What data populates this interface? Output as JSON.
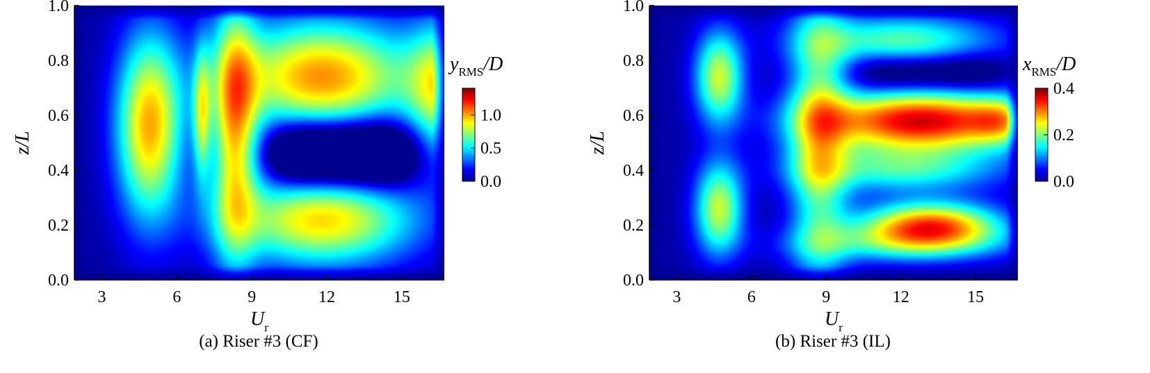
{
  "colors": {
    "jet_stops": [
      "#00008f",
      "#0000ff",
      "#0080ff",
      "#00ffff",
      "#80ff80",
      "#ffff00",
      "#ff8000",
      "#ff0000",
      "#800000"
    ],
    "axis": "#000000"
  },
  "chart_data": [
    {
      "type": "heatmap",
      "xlabel": "U",
      "xlabel_sub": "r",
      "ylabel": "z/L",
      "x_ticks": [
        3,
        6,
        9,
        12,
        15
      ],
      "x_tick_labels": [
        "3",
        "6",
        "9",
        "12",
        "15"
      ],
      "y_ticks": [
        0.0,
        0.2,
        0.4,
        0.6,
        0.8,
        1.0
      ],
      "y_tick_labels": [
        "0.0",
        "0.2",
        "0.4",
        "0.6",
        "0.8",
        "1.0"
      ],
      "xlim": [
        1.9,
        16.7
      ],
      "ylim": [
        0,
        1
      ],
      "colorbar": {
        "label_main": "y",
        "label_sub": "RMS",
        "label_tail": "/D",
        "range": [
          0,
          1.4
        ],
        "ticks": [
          0.0,
          0.5,
          1.0
        ],
        "tick_labels": [
          "0.0",
          "0.5",
          "1.0"
        ]
      },
      "caption": "(a) Riser #3 (CF)",
      "blobs": [
        {
          "x": 4.9,
          "y": 0.56,
          "sx": 0.95,
          "sy": 0.24,
          "v": 0.95
        },
        {
          "x": 7.0,
          "y": 0.6,
          "sx": 0.25,
          "sy": 0.17,
          "v": 0.55
        },
        {
          "x": 8.3,
          "y": 0.55,
          "sx": 0.65,
          "sy": 0.34,
          "v": 0.8
        },
        {
          "x": 11.8,
          "y": 0.74,
          "sx": 2.7,
          "sy": 0.15,
          "v": 1.0
        },
        {
          "x": 11.8,
          "y": 0.22,
          "sx": 2.7,
          "sy": 0.12,
          "v": 0.9
        },
        {
          "x": 16.6,
          "y": 0.7,
          "sx": 0.95,
          "sy": 0.17,
          "v": 0.7
        }
      ],
      "holes": [
        {
          "x": 12.6,
          "y": 0.46,
          "sx": 2.4,
          "sy": 0.08,
          "v": 0.85
        }
      ]
    },
    {
      "type": "heatmap",
      "xlabel": "U",
      "xlabel_sub": "r",
      "ylabel": "z/L",
      "x_ticks": [
        3,
        6,
        9,
        12,
        15
      ],
      "x_tick_labels": [
        "3",
        "6",
        "9",
        "12",
        "15"
      ],
      "y_ticks": [
        0.0,
        0.2,
        0.4,
        0.6,
        0.8,
        1.0
      ],
      "y_tick_labels": [
        "0.0",
        "0.2",
        "0.4",
        "0.6",
        "0.8",
        "1.0"
      ],
      "xlim": [
        1.9,
        16.7
      ],
      "ylim": [
        0,
        1
      ],
      "colorbar": {
        "label_main": "x",
        "label_sub": "RMS",
        "label_tail": "/D",
        "range": [
          0,
          0.4
        ],
        "ticks": [
          0.0,
          0.2,
          0.4
        ],
        "tick_labels": [
          "0.0",
          "0.2",
          "0.4"
        ]
      },
      "caption": "(b) Riser #3 (IL)",
      "blobs": [
        {
          "x": 4.7,
          "y": 0.74,
          "sx": 0.7,
          "sy": 0.12,
          "v": 0.22
        },
        {
          "x": 4.7,
          "y": 0.26,
          "sx": 0.7,
          "sy": 0.12,
          "v": 0.22
        },
        {
          "x": 8.7,
          "y": 0.5,
          "sx": 0.85,
          "sy": 0.4,
          "v": 0.18
        },
        {
          "x": 12.8,
          "y": 0.58,
          "sx": 3.1,
          "sy": 0.08,
          "v": 0.36
        },
        {
          "x": 16.0,
          "y": 0.58,
          "sx": 0.8,
          "sy": 0.06,
          "v": 0.1
        },
        {
          "x": 13.2,
          "y": 0.2,
          "sx": 2.0,
          "sy": 0.06,
          "v": 0.3
        },
        {
          "x": 12.0,
          "y": 0.87,
          "sx": 2.8,
          "sy": 0.07,
          "v": 0.18
        },
        {
          "x": 12.0,
          "y": 0.4,
          "sx": 3.0,
          "sy": 0.06,
          "v": 0.15
        },
        {
          "x": 12.0,
          "y": 0.13,
          "sx": 3.2,
          "sy": 0.05,
          "v": 0.12
        }
      ],
      "holes": [
        {
          "x": 13.0,
          "y": 0.76,
          "sx": 2.6,
          "sy": 0.05,
          "v": 0.1
        }
      ]
    }
  ]
}
